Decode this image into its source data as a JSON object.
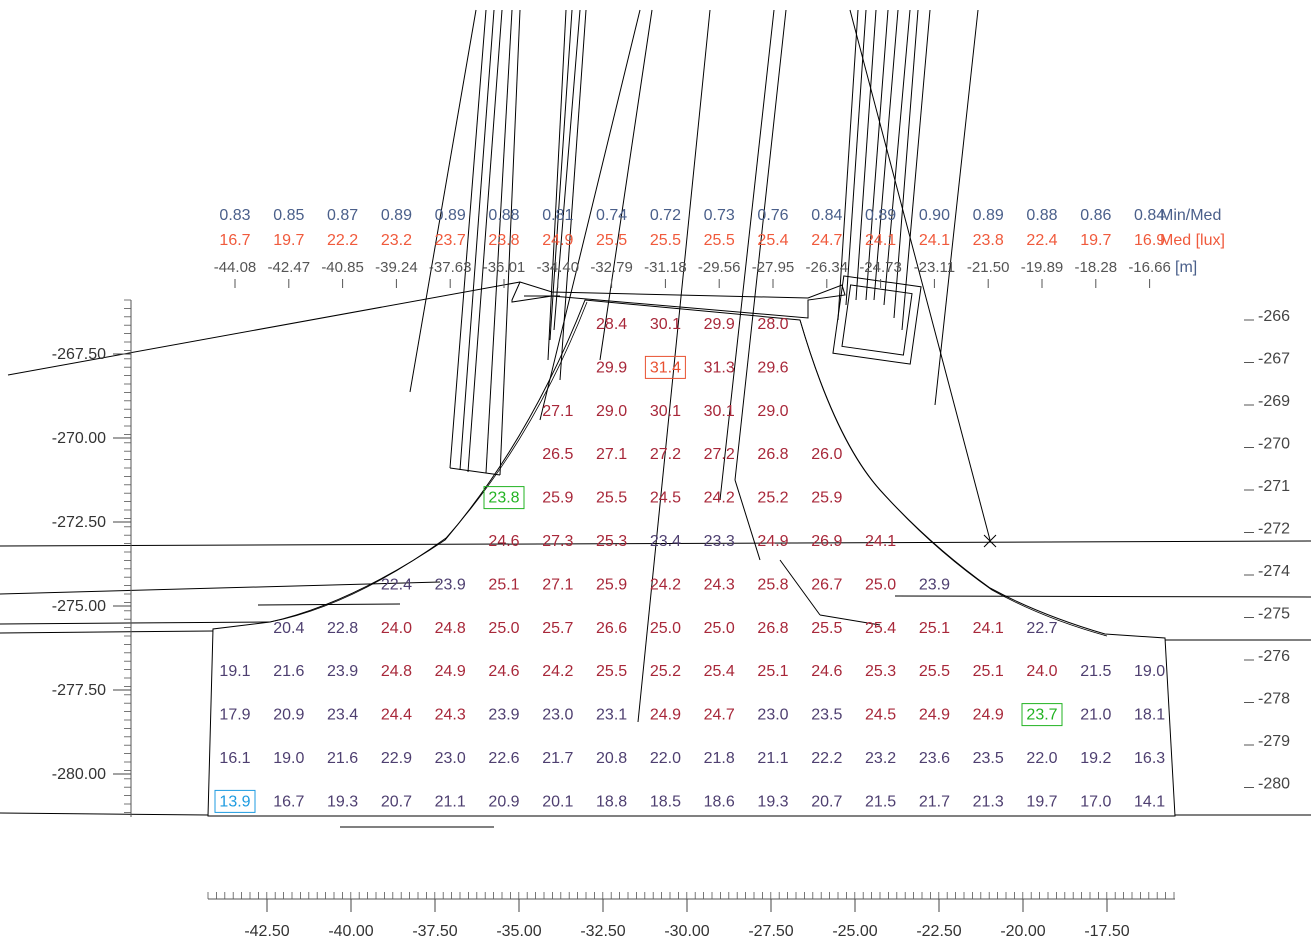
{
  "top_header": {
    "columns": [
      {
        "ratio": "0.83",
        "median": "16.7",
        "x": "-44.08"
      },
      {
        "ratio": "0.85",
        "median": "19.7",
        "x": "-42.47"
      },
      {
        "ratio": "0.87",
        "median": "22.2",
        "x": "-40.85"
      },
      {
        "ratio": "0.89",
        "median": "23.2",
        "x": "-39.24"
      },
      {
        "ratio": "0.89",
        "median": "23.7",
        "x": "-37.63"
      },
      {
        "ratio": "0.88",
        "median": "23.8",
        "x": "-36.01"
      },
      {
        "ratio": "0.81",
        "median": "24.9",
        "x": "-34.40"
      },
      {
        "ratio": "0.74",
        "median": "25.5",
        "x": "-32.79"
      },
      {
        "ratio": "0.72",
        "median": "25.5",
        "x": "-31.18"
      },
      {
        "ratio": "0.73",
        "median": "25.5",
        "x": "-29.56"
      },
      {
        "ratio": "0.76",
        "median": "25.4",
        "x": "-27.95"
      },
      {
        "ratio": "0.84",
        "median": "24.7",
        "x": "-26.34"
      },
      {
        "ratio": "0.89",
        "median": "24.1",
        "x": "-24.73"
      },
      {
        "ratio": "0.90",
        "median": "24.1",
        "x": "-23.11"
      },
      {
        "ratio": "0.89",
        "median": "23.8",
        "x": "-21.50"
      },
      {
        "ratio": "0.88",
        "median": "22.4",
        "x": "-19.89"
      },
      {
        "ratio": "0.86",
        "median": "19.7",
        "x": "-18.28"
      },
      {
        "ratio": "0.84",
        "median": "16.9",
        "x": "-16.66"
      }
    ],
    "ratio_label": "Min/Med",
    "median_label": "Med [lux]",
    "unit_label": "[m]"
  },
  "left_axis": {
    "ticks": [
      "-267.50",
      "-270.00",
      "-272.50",
      "-275.00",
      "-277.50",
      "-280.00"
    ]
  },
  "right_axis": {
    "ticks": [
      "-266",
      "-267",
      "-269",
      "-270",
      "-271",
      "-272",
      "-274",
      "-275",
      "-276",
      "-278",
      "-279",
      "-280"
    ]
  },
  "bottom_axis": {
    "ticks": [
      "-42.50",
      "-40.00",
      "-37.50",
      "-35.00",
      "-32.50",
      "-30.00",
      "-27.50",
      "-25.00",
      "-22.50",
      "-20.00",
      "-17.50"
    ]
  },
  "grid": {
    "rows": [
      {
        "start_col": 7,
        "values": [
          "28.4",
          "30.1",
          "29.9",
          "28.0"
        ]
      },
      {
        "start_col": 7,
        "values": [
          "29.9",
          "31.4",
          "31.3",
          "29.6"
        ]
      },
      {
        "start_col": 6,
        "values": [
          "27.1",
          "29.0",
          "30.1",
          "30.1",
          "29.0"
        ]
      },
      {
        "start_col": 6,
        "values": [
          "26.5",
          "27.1",
          "27.2",
          "27.2",
          "26.8",
          "26.0"
        ]
      },
      {
        "start_col": 5,
        "values": [
          "23.8",
          "25.9",
          "25.5",
          "24.5",
          "24.2",
          "25.2",
          "25.9"
        ]
      },
      {
        "start_col": 5,
        "values": [
          "24.6",
          "27.3",
          "25.3",
          "23.4",
          "23.3",
          "24.9",
          "26.9",
          "24.1"
        ]
      },
      {
        "start_col": 3,
        "values": [
          "22.4",
          "23.9",
          "25.1",
          "27.1",
          "25.9",
          "24.2",
          "24.3",
          "25.8",
          "26.7",
          "25.0",
          "23.9"
        ]
      },
      {
        "start_col": 1,
        "values": [
          "20.4",
          "22.8",
          "24.0",
          "24.8",
          "25.0",
          "25.7",
          "26.6",
          "25.0",
          "25.0",
          "26.8",
          "25.5",
          "25.4",
          "25.1",
          "24.1",
          "22.7"
        ]
      },
      {
        "start_col": 0,
        "values": [
          "19.1",
          "21.6",
          "23.9",
          "24.8",
          "24.9",
          "24.6",
          "24.2",
          "25.5",
          "25.2",
          "25.4",
          "25.1",
          "24.6",
          "25.3",
          "25.5",
          "25.1",
          "24.0",
          "21.5",
          "19.0"
        ]
      },
      {
        "start_col": 0,
        "values": [
          "17.9",
          "20.9",
          "23.4",
          "24.4",
          "24.3",
          "23.9",
          "23.0",
          "23.1",
          "24.9",
          "24.7",
          "23.0",
          "23.5",
          "24.5",
          "24.9",
          "24.9",
          "23.7",
          "21.0",
          "18.1"
        ]
      },
      {
        "start_col": 0,
        "values": [
          "16.1",
          "19.0",
          "21.6",
          "22.9",
          "23.0",
          "22.6",
          "21.7",
          "20.8",
          "22.0",
          "21.8",
          "21.1",
          "22.2",
          "23.2",
          "23.6",
          "23.5",
          "22.0",
          "19.2",
          "16.3"
        ]
      },
      {
        "start_col": 0,
        "values": [
          "13.9",
          "16.7",
          "19.3",
          "20.7",
          "21.1",
          "20.9",
          "20.1",
          "18.8",
          "18.5",
          "18.6",
          "19.3",
          "20.7",
          "21.5",
          "21.7",
          "21.3",
          "19.7",
          "17.0",
          "14.1"
        ]
      }
    ],
    "highlights": [
      {
        "value": "31.4",
        "kind": "max",
        "color": "#e85030"
      },
      {
        "value": "23.8",
        "kind": "local",
        "color": "#22b322"
      },
      {
        "value": "23.7",
        "kind": "local",
        "color": "#22b322"
      },
      {
        "value": "13.9",
        "kind": "min",
        "color": "#1e9be0"
      }
    ]
  },
  "colors": {
    "ratio_text": "#4a5f8a",
    "median_text": "#f05a3c",
    "axis_text": "#4a4a4a",
    "value_high": "#a8283a",
    "value_low": "#4e3f70",
    "lines": "#000000"
  }
}
